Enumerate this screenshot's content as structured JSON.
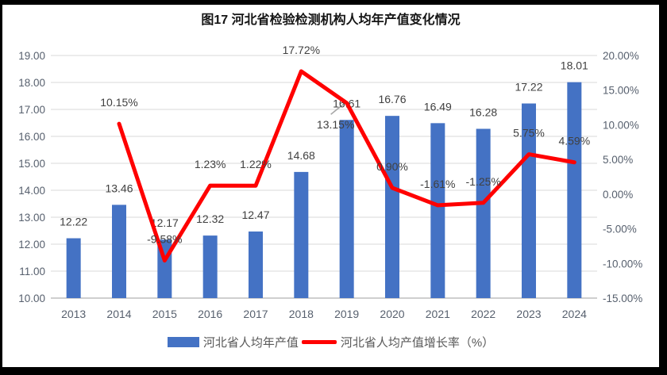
{
  "title": "图17 河北省检验检测机构人均年产值变化情况",
  "chart_data": {
    "type": "bar",
    "subtype": "bar-line-combo",
    "title": "图17 河北省检验检测机构人均年产值变化情况",
    "categories": [
      "2013",
      "2014",
      "2015",
      "2016",
      "2017",
      "2018",
      "2019",
      "2020",
      "2021",
      "2022",
      "2023",
      "2024"
    ],
    "series": [
      {
        "name": "河北省人均年产值",
        "render": "bar",
        "axis": "left",
        "color": "#4472C4",
        "values": [
          12.22,
          13.46,
          12.17,
          12.32,
          12.47,
          14.68,
          16.61,
          16.76,
          16.49,
          16.28,
          17.22,
          18.01
        ],
        "labels": [
          "12.22",
          "13.46",
          "12.17",
          "12.32",
          "12.47",
          "14.68",
          "16.61",
          "16.76",
          "16.49",
          "16.28",
          "17.22",
          "18.01"
        ],
        "label_leader_at": 6
      },
      {
        "name": "河北省人均产值增长率（%）",
        "render": "line",
        "axis": "right",
        "color": "#FF0000",
        "values": [
          null,
          10.15,
          -9.58,
          1.23,
          1.22,
          17.72,
          13.15,
          0.9,
          -1.61,
          -1.25,
          5.75,
          4.59
        ],
        "labels": [
          "",
          "10.15%",
          "-9.58%",
          "1.23%",
          "1.22%",
          "17.72%",
          "13.15%",
          "0.90%",
          "-1.61%",
          "-1.25%",
          "5.75%",
          "4.59%"
        ]
      }
    ],
    "left_axis": {
      "min": 10,
      "max": 19,
      "step": 1,
      "labels": [
        "10.00",
        "11.00",
        "12.00",
        "13.00",
        "14.00",
        "15.00",
        "16.00",
        "17.00",
        "18.00",
        "19.00"
      ]
    },
    "right_axis": {
      "min": -15,
      "max": 20,
      "step": 5,
      "labels": [
        "-15.00%",
        "-10.00%",
        "-5.00%",
        "0.00%",
        "5.00%",
        "10.00%",
        "15.00%",
        "20.00%"
      ]
    },
    "grid": true,
    "legend_position": "bottom",
    "colors": {
      "grid": "#D9D9D9",
      "axis_line": "#BFBFBF",
      "tick_label": "#57606E",
      "data_label": "#404040",
      "leader": "#A6A6A6",
      "title_text": "#141414",
      "legend_text": "#595959",
      "frame_border": "#000000",
      "background": "#FFFFFF"
    }
  }
}
